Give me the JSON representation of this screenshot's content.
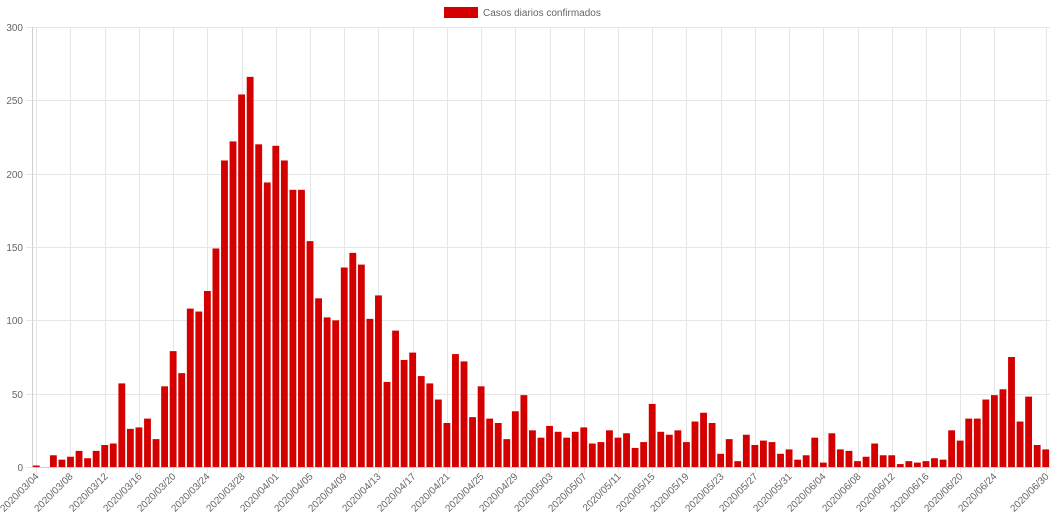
{
  "chart_data": {
    "type": "bar",
    "color": "#d40000",
    "legend": {
      "label": "Casos diarios confirmados",
      "position": "top-center"
    },
    "grid": true,
    "ylim": [
      0,
      300
    ],
    "yticks": [
      0,
      50,
      100,
      150,
      200,
      250,
      300
    ],
    "xtick_labels": [
      "2020/03/04",
      "2020/03/08",
      "2020/03/12",
      "2020/03/16",
      "2020/03/20",
      "2020/03/24",
      "2020/03/28",
      "2020/04/01",
      "2020/04/05",
      "2020/04/09",
      "2020/04/13",
      "2020/04/17",
      "2020/04/21",
      "2020/04/25",
      "2020/04/29",
      "2020/05/03",
      "2020/05/07",
      "2020/05/11",
      "2020/05/15",
      "2020/05/19",
      "2020/05/23",
      "2020/05/27",
      "2020/05/31",
      "2020/06/04",
      "2020/06/08",
      "2020/06/12",
      "2020/06/16",
      "2020/06/20",
      "2020/06/24",
      "2020/06/30"
    ],
    "x": [
      "2020/03/04",
      "2020/03/05",
      "2020/03/06",
      "2020/03/07",
      "2020/03/08",
      "2020/03/09",
      "2020/03/10",
      "2020/03/11",
      "2020/03/12",
      "2020/03/13",
      "2020/03/14",
      "2020/03/15",
      "2020/03/16",
      "2020/03/17",
      "2020/03/18",
      "2020/03/19",
      "2020/03/20",
      "2020/03/21",
      "2020/03/22",
      "2020/03/23",
      "2020/03/24",
      "2020/03/25",
      "2020/03/26",
      "2020/03/27",
      "2020/03/28",
      "2020/03/29",
      "2020/03/30",
      "2020/03/31",
      "2020/04/01",
      "2020/04/02",
      "2020/04/03",
      "2020/04/04",
      "2020/04/05",
      "2020/04/06",
      "2020/04/07",
      "2020/04/08",
      "2020/04/09",
      "2020/04/10",
      "2020/04/11",
      "2020/04/12",
      "2020/04/13",
      "2020/04/14",
      "2020/04/15",
      "2020/04/16",
      "2020/04/17",
      "2020/04/18",
      "2020/04/19",
      "2020/04/20",
      "2020/04/21",
      "2020/04/22",
      "2020/04/23",
      "2020/04/24",
      "2020/04/25",
      "2020/04/26",
      "2020/04/27",
      "2020/04/28",
      "2020/04/29",
      "2020/04/30",
      "2020/05/01",
      "2020/05/02",
      "2020/05/03",
      "2020/05/04",
      "2020/05/05",
      "2020/05/06",
      "2020/05/07",
      "2020/05/08",
      "2020/05/09",
      "2020/05/10",
      "2020/05/11",
      "2020/05/12",
      "2020/05/13",
      "2020/05/14",
      "2020/05/15",
      "2020/05/16",
      "2020/05/17",
      "2020/05/18",
      "2020/05/19",
      "2020/05/20",
      "2020/05/21",
      "2020/05/22",
      "2020/05/23",
      "2020/05/24",
      "2020/05/25",
      "2020/05/26",
      "2020/05/27",
      "2020/05/28",
      "2020/05/29",
      "2020/05/30",
      "2020/05/31",
      "2020/06/01",
      "2020/06/02",
      "2020/06/03",
      "2020/06/04",
      "2020/06/05",
      "2020/06/06",
      "2020/06/07",
      "2020/06/08",
      "2020/06/09",
      "2020/06/10",
      "2020/06/11",
      "2020/06/12",
      "2020/06/13",
      "2020/06/14",
      "2020/06/15",
      "2020/06/16",
      "2020/06/17",
      "2020/06/18",
      "2020/06/19",
      "2020/06/20",
      "2020/06/21",
      "2020/06/22",
      "2020/06/23",
      "2020/06/24",
      "2020/06/25",
      "2020/06/26",
      "2020/06/27",
      "2020/06/28",
      "2020/06/29",
      "2020/06/30"
    ],
    "series": [
      {
        "values": [
          1,
          0,
          8,
          5,
          7,
          11,
          6,
          11,
          15,
          16,
          57,
          26,
          27,
          33,
          19,
          55,
          79,
          64,
          108,
          106,
          120,
          149,
          209,
          222,
          254,
          266,
          220,
          194,
          219,
          209,
          189,
          189,
          154,
          115,
          102,
          100,
          136,
          146,
          138,
          101,
          117,
          58,
          93,
          73,
          78,
          62,
          57,
          46,
          30,
          77,
          72,
          34,
          55,
          33,
          30,
          19,
          38,
          49,
          25,
          20,
          28,
          24,
          20,
          24,
          27,
          16,
          17,
          25,
          20,
          23,
          13,
          17,
          43,
          24,
          22,
          25,
          17,
          31,
          37,
          30,
          9,
          19,
          4,
          22,
          15,
          18,
          17,
          9,
          12,
          5,
          8,
          20,
          3,
          23,
          12,
          11,
          4,
          7,
          16,
          8,
          8,
          2,
          4,
          3,
          4,
          6,
          5,
          25,
          18,
          33,
          33,
          46,
          49,
          53,
          75,
          31,
          48,
          15,
          12
        ]
      }
    ]
  }
}
